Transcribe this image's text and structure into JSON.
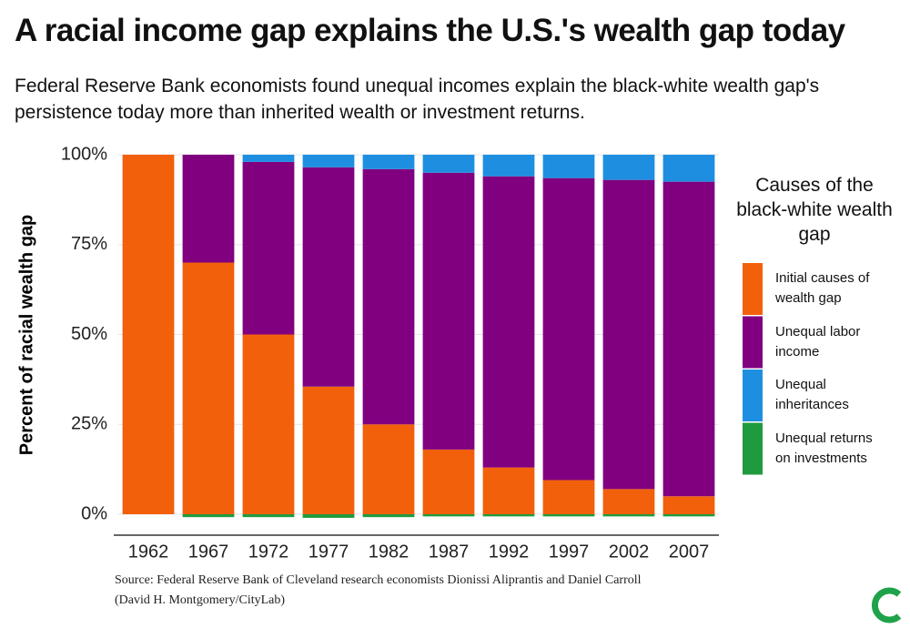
{
  "chart_data": {
    "type": "stacked-bar",
    "title": "A racial income gap explains the U.S.'s wealth gap today",
    "subtitle": "Federal Reserve Bank economists found unequal incomes explain the black-white wealth gap's persistence today more than inherited wealth or investment returns.",
    "y_label": "Percent of racial wealth gap",
    "legend_title": "Causes of the black-white wealth gap",
    "categories": [
      "1962",
      "1967",
      "1972",
      "1977",
      "1982",
      "1987",
      "1992",
      "1997",
      "2002",
      "2007"
    ],
    "series": [
      {
        "name": "Initial causes of wealth gap",
        "color": "#f2600c",
        "values": [
          100,
          70,
          50,
          35.5,
          25,
          18,
          13,
          9.5,
          7,
          5
        ]
      },
      {
        "name": "Unequal labor income",
        "color": "#800080",
        "values": [
          0,
          30,
          48,
          61,
          71,
          77,
          81,
          84,
          86,
          87.5
        ]
      },
      {
        "name": "Unequal inheritances",
        "color": "#1e8fe0",
        "values": [
          0,
          0,
          2,
          3.5,
          4,
          5,
          6,
          6.5,
          7,
          7.5
        ]
      },
      {
        "name": "Unequal returns on investments",
        "color": "#1f9a3e",
        "values": [
          0,
          -0.8,
          -0.8,
          -1,
          -0.8,
          -0.6,
          -0.6,
          -0.6,
          -0.6,
          -0.6
        ]
      }
    ],
    "ylim": [
      -2,
      100
    ],
    "yticks": [
      {
        "value": 0,
        "label": "0%"
      },
      {
        "value": 25,
        "label": "25%"
      },
      {
        "value": 50,
        "label": "50%"
      },
      {
        "value": 75,
        "label": "75%"
      },
      {
        "value": 100,
        "label": "100%"
      }
    ],
    "grid": true,
    "legend": "right",
    "source": "Source: Federal Reserve Bank of Cleveland research economists Dionissi Aliprantis and Daniel Carroll",
    "credit": "(David H. Montgomery/CityLab)"
  }
}
